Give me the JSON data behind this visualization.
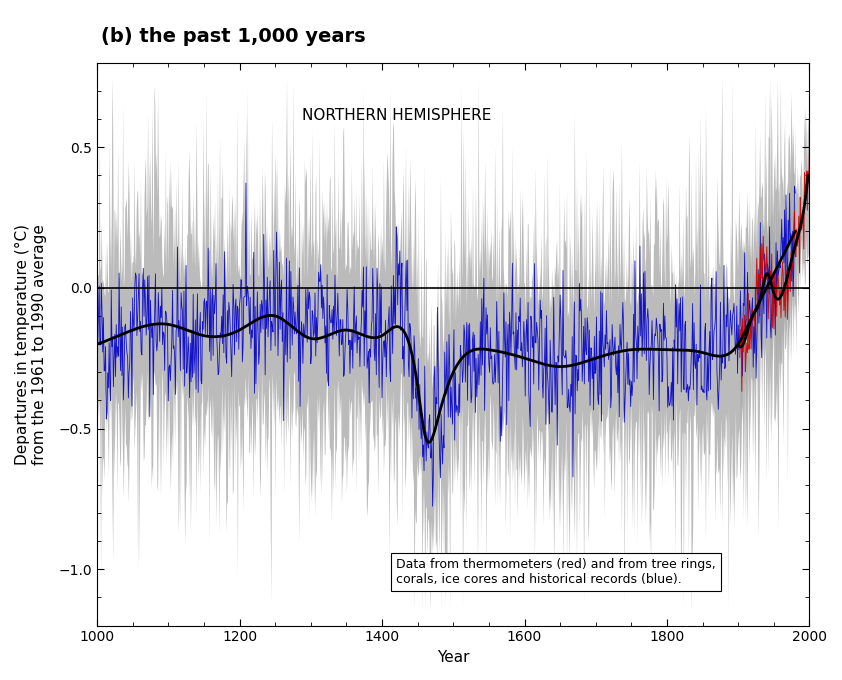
{
  "title": "(b) the past 1,000 years",
  "inner_title": "NORTHERN HEMISPHERE",
  "xlabel": "Year",
  "ylabel": "Departures in temperature (°C)\nfrom the 1961 to 1990 average",
  "xlim": [
    1000,
    2000
  ],
  "ylim": [
    -1.2,
    0.8
  ],
  "yticks": [
    -1.0,
    -0.5,
    0.0,
    0.5
  ],
  "xticks": [
    1000,
    1200,
    1400,
    1600,
    1800,
    2000
  ],
  "proxy_color": "#0000cc",
  "thermo_color": "#cc0000",
  "smooth_color": "#000000",
  "uncertainty_color": "#aaaaaa",
  "legend_text_line1": "Data from thermometers (red) and from tree rings,",
  "legend_text_line2": "corals, ice cores and historical records (blue).",
  "title_fontsize": 14,
  "axis_fontsize": 11,
  "tick_fontsize": 10
}
